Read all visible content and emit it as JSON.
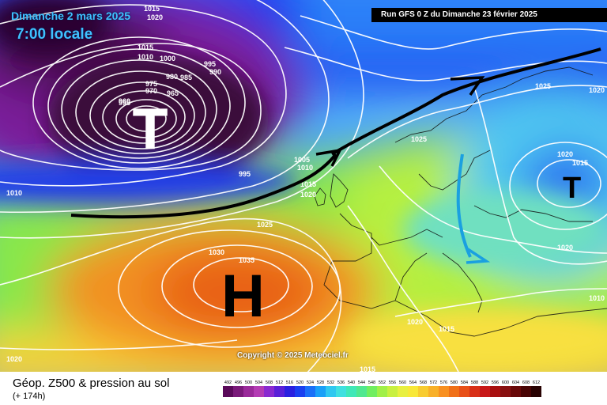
{
  "header": {
    "date_text": "Dimanche 2 mars 2025",
    "time_text": "7:00 locale",
    "run_text": "Run GFS 0 Z du Dimanche 23 février 2025"
  },
  "pressure_systems": [
    {
      "symbol": "T",
      "kind": "low"
    },
    {
      "symbol": "H",
      "kind": "high"
    },
    {
      "symbol": "T",
      "kind": "low"
    }
  ],
  "isobar_labels": [
    "1015",
    "1020",
    "1015",
    "1010",
    "1000",
    "995",
    "990",
    "985",
    "980",
    "975",
    "970",
    "965",
    "960",
    "955",
    "995",
    "1010",
    "1005",
    "1010",
    "1015",
    "1020",
    "1025",
    "1030",
    "1035",
    "1025",
    "1025",
    "1020",
    "1015",
    "1020",
    "1020",
    "1015",
    "1020",
    "1015",
    "1020",
    "1010",
    "102"
  ],
  "copyright": "Copyright © 2025 Meteociel.fr",
  "footer": {
    "title": "Géop. Z500 & pression au sol",
    "subtitle": "(+ 174h)"
  },
  "legend": {
    "labels": [
      "492",
      "496",
      "500",
      "504",
      "508",
      "512",
      "516",
      "520",
      "524",
      "528",
      "532",
      "536",
      "540",
      "544",
      "548",
      "552",
      "556",
      "560",
      "564",
      "568",
      "572",
      "576",
      "580",
      "584",
      "588",
      "592",
      "596",
      "600",
      "604",
      "608",
      "612"
    ],
    "colors": [
      "#5a0a5a",
      "#7a1a7a",
      "#9a2a9a",
      "#b43cb4",
      "#8a2ad0",
      "#5a20d8",
      "#2a20e0",
      "#1a40f0",
      "#1a70f8",
      "#1aa0f8",
      "#30c8f0",
      "#40e0e0",
      "#40e8b8",
      "#50e890",
      "#70ee60",
      "#a0f048",
      "#c8f040",
      "#e8f040",
      "#f8e838",
      "#f8cc30",
      "#f8b028",
      "#f89020",
      "#f07018",
      "#e85018",
      "#d83018",
      "#c81818",
      "#a81010",
      "#881010",
      "#680808",
      "#480404",
      "#280202"
    ]
  },
  "colors": {
    "accent_text": "#3fc0ff",
    "arrow_dark": "#000000",
    "arrow_blue": "#1aa0e0"
  }
}
